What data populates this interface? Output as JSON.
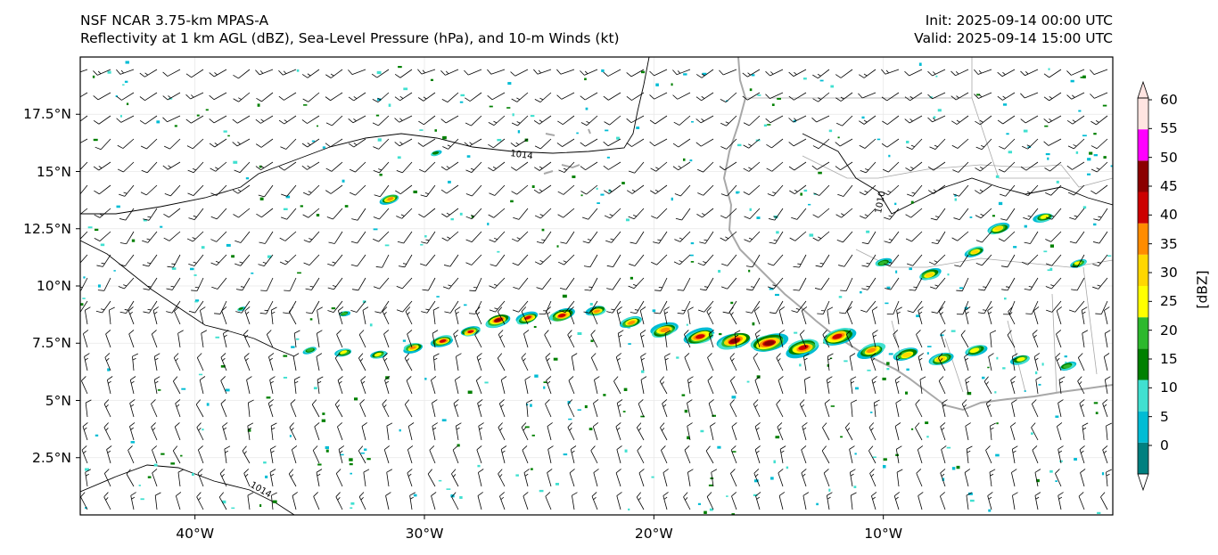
{
  "header": {
    "model": "NSF NCAR 3.75-km MPAS-A",
    "fields": "Reflectivity at 1 km AGL (dBZ), Sea-Level Pressure (hPa), and 10-m Winds (kt)",
    "init": "Init: 2025-09-14 00:00 UTC",
    "valid": "Valid: 2025-09-14 15:00 UTC"
  },
  "map": {
    "extent": {
      "lon_min": -45,
      "lon_max": 0,
      "lat_min": 0,
      "lat_max": 20
    },
    "lat_ticks": [
      {
        "value": 2.5,
        "label": "2.5°N"
      },
      {
        "value": 5,
        "label": "5°N"
      },
      {
        "value": 7.5,
        "label": "7.5°N"
      },
      {
        "value": 10,
        "label": "10°N"
      },
      {
        "value": 12.5,
        "label": "12.5°N"
      },
      {
        "value": 15,
        "label": "15°N"
      },
      {
        "value": 17.5,
        "label": "17.5°N"
      }
    ],
    "lon_ticks": [
      {
        "value": -40,
        "label": "40°W"
      },
      {
        "value": -30,
        "label": "30°W"
      },
      {
        "value": -20,
        "label": "20°W"
      },
      {
        "value": -10,
        "label": "10°W"
      }
    ],
    "isobar_label": "1014",
    "isobar_label_inland": "1010"
  },
  "colorbar": {
    "title": "[dBZ]",
    "levels": [
      0,
      5,
      10,
      15,
      20,
      25,
      30,
      35,
      40,
      45,
      50,
      55,
      60
    ],
    "labels": [
      "0",
      "5",
      "10",
      "15",
      "20",
      "25",
      "30",
      "35",
      "40",
      "45",
      "50",
      "55",
      "60"
    ],
    "colors": [
      "#ffffff",
      "#008080",
      "#00bcd4",
      "#40e0d0",
      "#008000",
      "#2db82d",
      "#ffff00",
      "#ffd700",
      "#ff8c00",
      "#cc0000",
      "#8b0000",
      "#ff00ff",
      "#ffe4e1"
    ]
  },
  "colors": {
    "coastline": "#a8a8a8",
    "isobar": "#000000",
    "grid": "#e8e8e8"
  }
}
